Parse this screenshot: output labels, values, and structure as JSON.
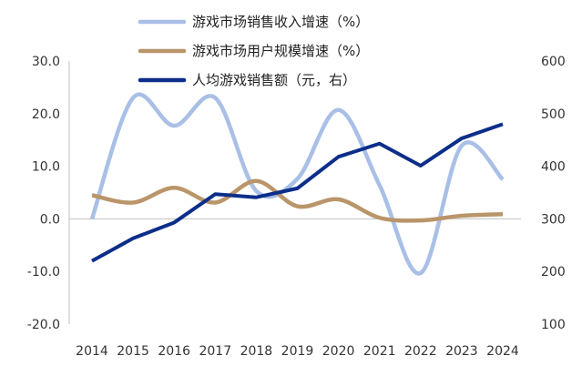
{
  "chart_data": {
    "type": "line",
    "categories": [
      "2014",
      "2015",
      "2016",
      "2017",
      "2018",
      "2019",
      "2020",
      "2021",
      "2022",
      "2023",
      "2024"
    ],
    "y_left": {
      "ticks": [
        "30.0",
        "20.0",
        "10.0",
        "0.0",
        "-10.0",
        "-20.0"
      ],
      "ylim": [
        -20,
        30
      ]
    },
    "y_right": {
      "ticks": [
        "600",
        "500",
        "400",
        "300",
        "200",
        "100"
      ],
      "ylim": [
        100,
        600
      ]
    },
    "grid": false,
    "legend_position": "top-center",
    "series": [
      {
        "name": "游戏市场销售收入增速（%）",
        "axis": "left",
        "smooth": true,
        "color": "#a9bfe6",
        "values": [
          0.0,
          23.0,
          17.7,
          23.0,
          5.3,
          7.6,
          20.7,
          6.4,
          -10.3,
          13.9,
          7.5
        ]
      },
      {
        "name": "游戏市场用户规模增速（%）",
        "axis": "left",
        "smooth": true,
        "color": "#b9956a",
        "values": [
          4.5,
          3.1,
          5.9,
          3.1,
          7.2,
          2.4,
          3.7,
          0.2,
          -0.3,
          0.6,
          0.9
        ]
      },
      {
        "name": "人均游戏销售额（元，右）",
        "axis": "right",
        "smooth": false,
        "color": "#0c2e8a",
        "values": [
          220,
          263,
          293,
          347,
          341,
          358,
          418,
          443,
          401,
          453,
          480
        ]
      }
    ]
  }
}
